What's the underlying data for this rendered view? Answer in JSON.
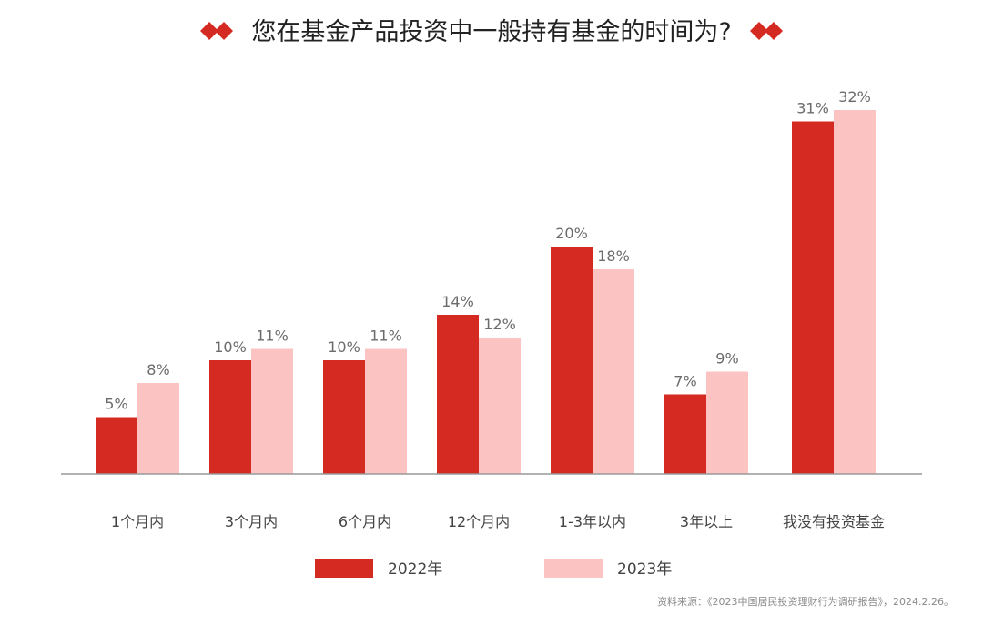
{
  "chart_data": {
    "type": "bar",
    "title": "您在基金产品投资中一般持有基金的时间为?",
    "categories": [
      "1个月内",
      "3个月内",
      "6个月内",
      "12个月内",
      "1-3年以内",
      "3年以上",
      "我没有投资基金"
    ],
    "series": [
      {
        "name": "2022年",
        "color": "#d42a22",
        "values": [
          5,
          10,
          10,
          14,
          20,
          7,
          31
        ],
        "labels": [
          "5%",
          "10%",
          "10%",
          "14%",
          "20%",
          "7%",
          "31%"
        ]
      },
      {
        "name": "2023年",
        "color": "#fcc3c3",
        "values": [
          8,
          11,
          11,
          12,
          18,
          9,
          32
        ],
        "labels": [
          "8%",
          "11%",
          "11%",
          "12%",
          "18%",
          "9%",
          "32%"
        ]
      }
    ],
    "value_unit": "%",
    "ylim": [
      0,
      32
    ],
    "grid": false,
    "legend_position": "bottom"
  },
  "source": "资料来源：《2023中国居民投资理财行为调研报告》，2024.2.26。",
  "colors": {
    "accent": "#d42a22",
    "title_diamond": "#d42a22",
    "axis": "#999999"
  }
}
